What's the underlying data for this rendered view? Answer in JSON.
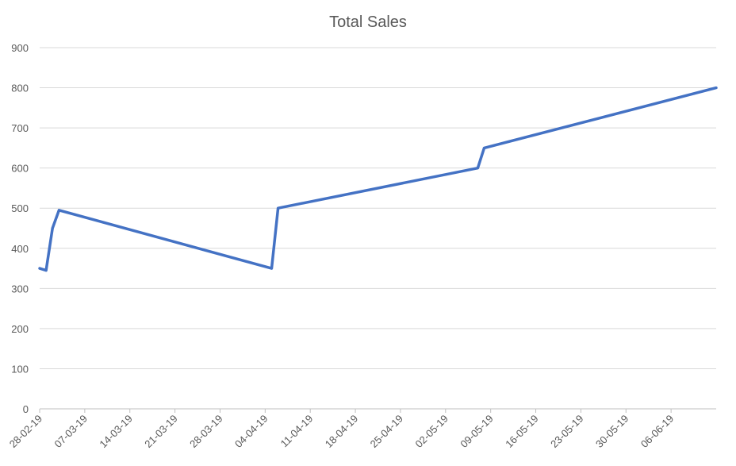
{
  "chart_data": {
    "type": "line",
    "title": "Total Sales",
    "xlabel": "",
    "ylabel": "",
    "ylim": [
      0,
      900
    ],
    "yticks": [
      0,
      100,
      200,
      300,
      400,
      500,
      600,
      700,
      800,
      900
    ],
    "xlim": [
      "2019-02-28",
      "2019-06-13"
    ],
    "xtick_labels": [
      "28-02-19",
      "07-03-19",
      "14-03-19",
      "21-03-19",
      "28-03-19",
      "04-04-19",
      "11-04-19",
      "18-04-19",
      "25-04-19",
      "02-05-19",
      "09-05-19",
      "16-05-19",
      "23-05-19",
      "30-05-19",
      "06-06-19"
    ],
    "grid": true,
    "legend": "none",
    "series": [
      {
        "color": "#4472c4",
        "points": [
          {
            "x": "2019-02-28",
            "y": 350
          },
          {
            "x": "2019-03-01",
            "y": 345
          },
          {
            "x": "2019-03-02",
            "y": 450
          },
          {
            "x": "2019-03-03",
            "y": 495
          },
          {
            "x": "2019-04-05",
            "y": 350
          },
          {
            "x": "2019-04-06",
            "y": 500
          },
          {
            "x": "2019-05-07",
            "y": 600
          },
          {
            "x": "2019-05-08",
            "y": 650
          },
          {
            "x": "2019-06-13",
            "y": 800
          }
        ]
      }
    ]
  }
}
